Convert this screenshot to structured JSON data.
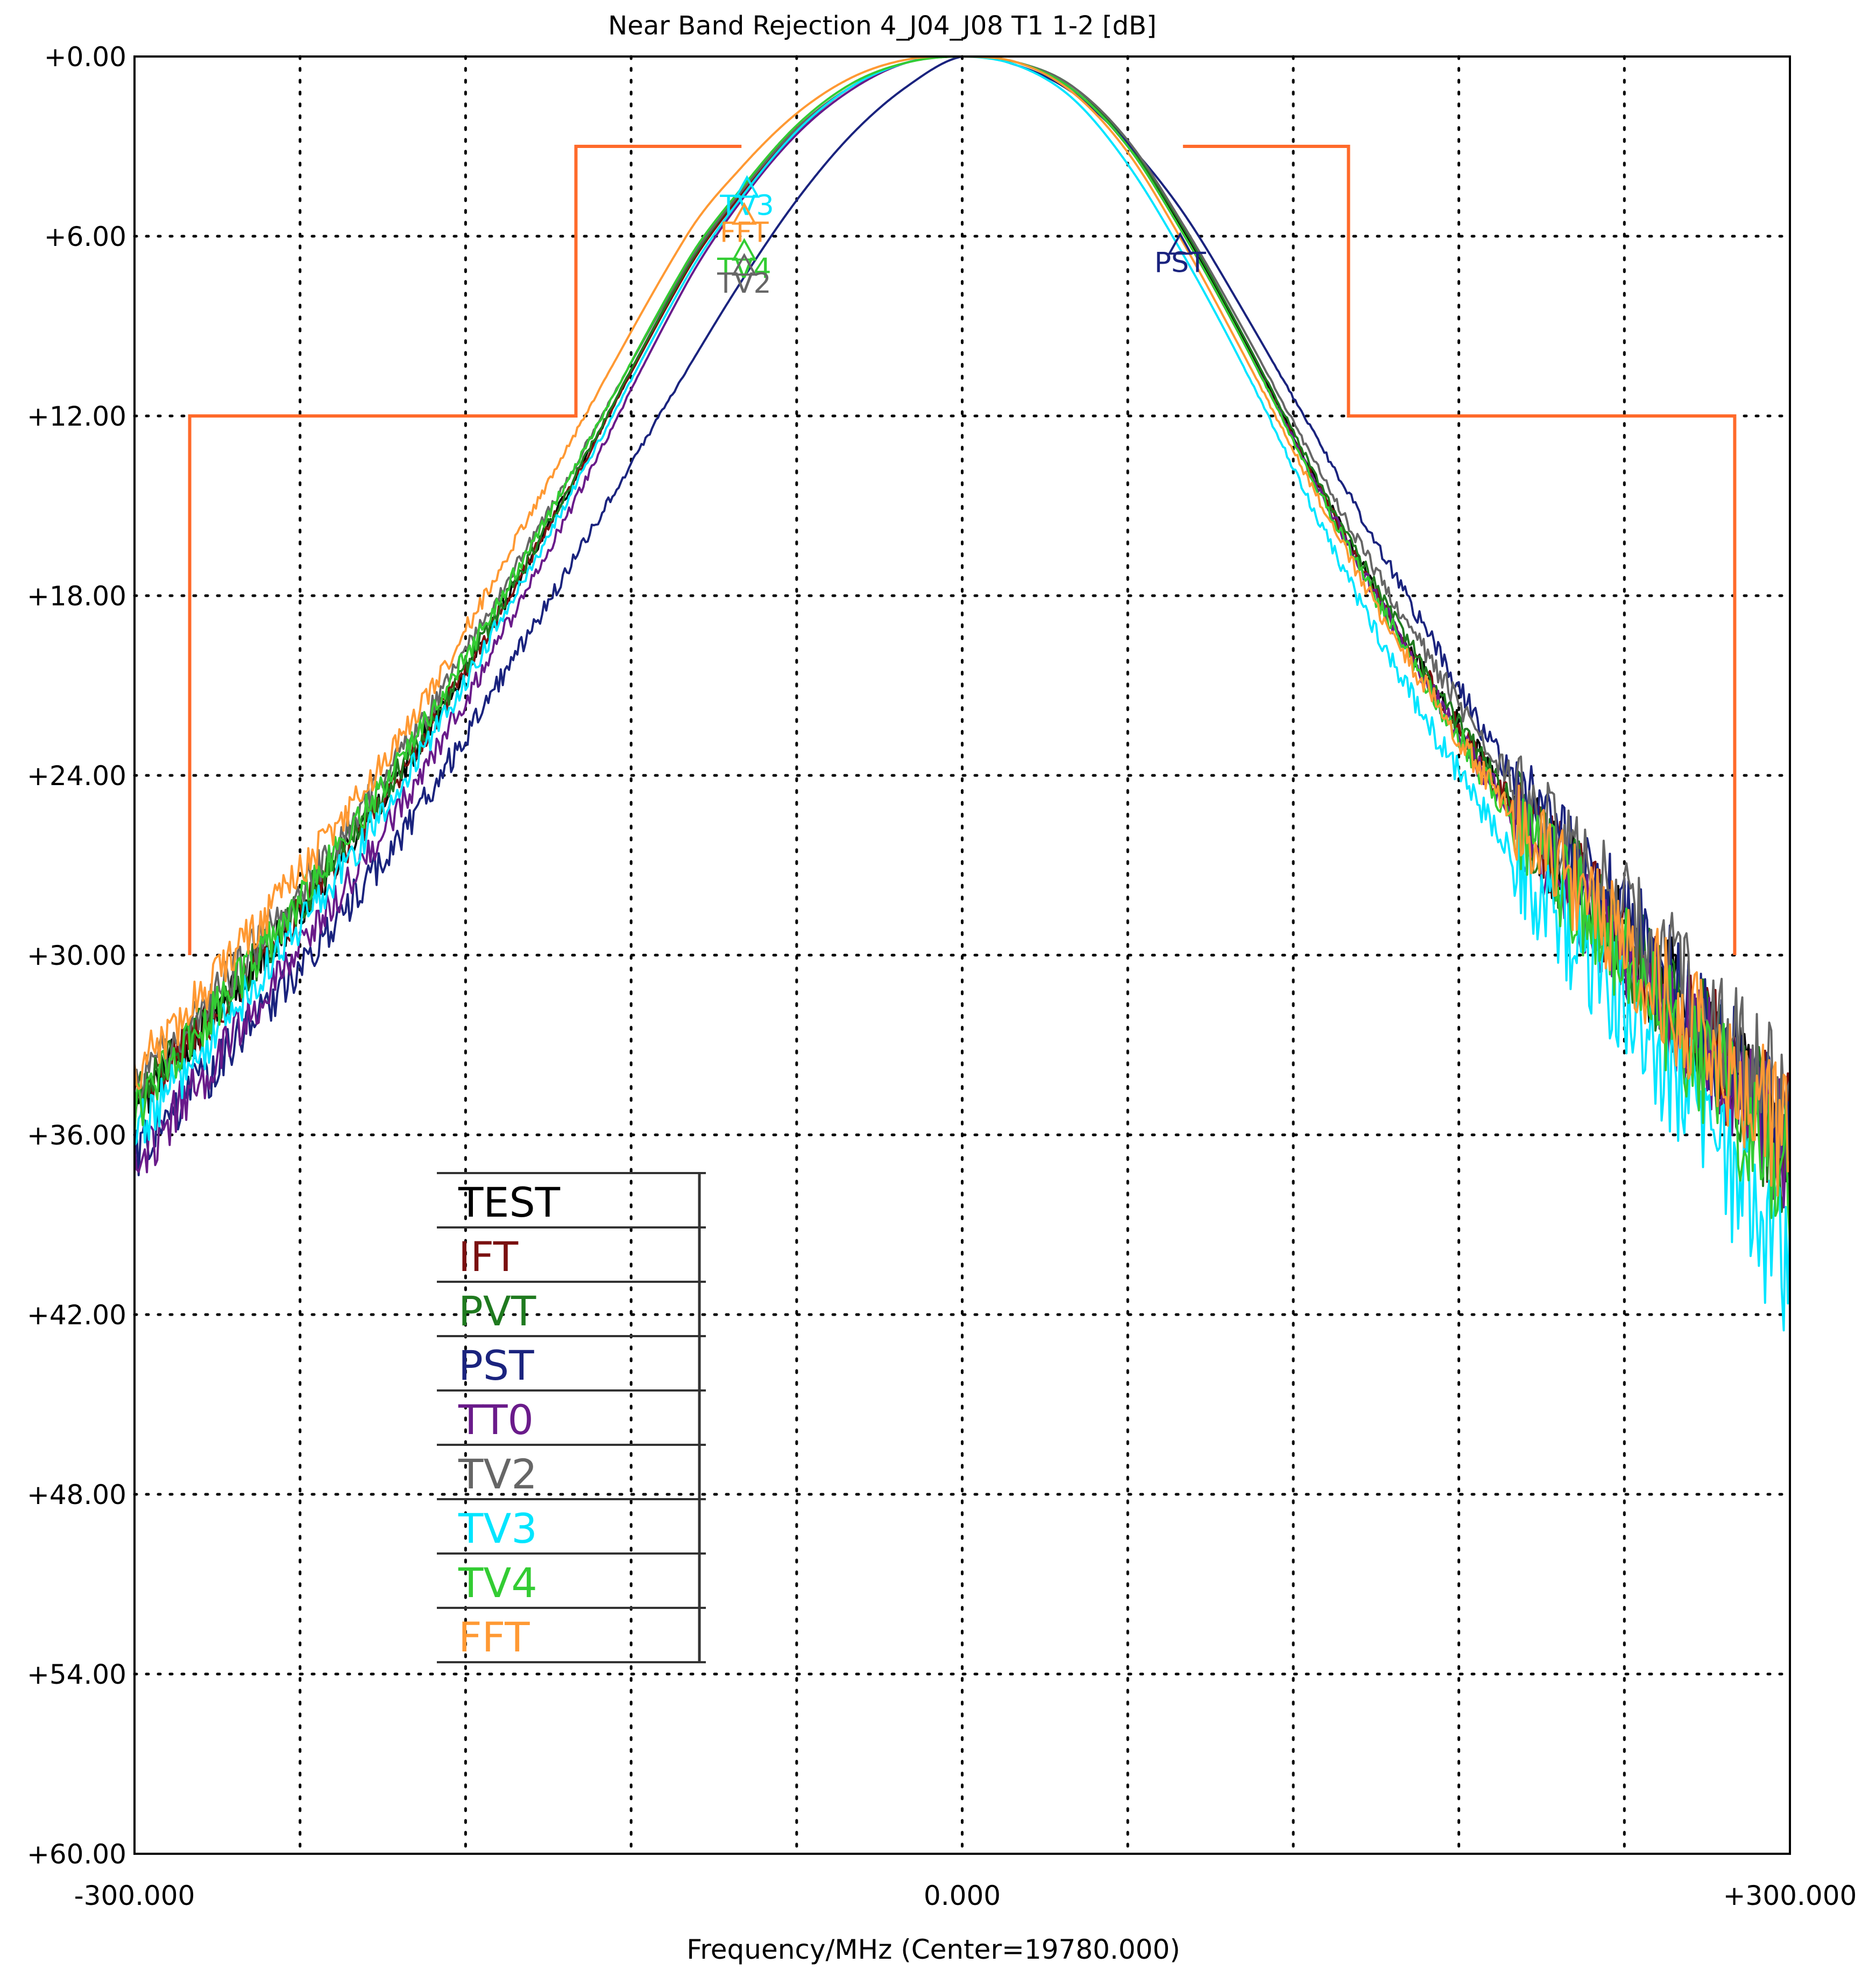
{
  "chart_data": {
    "type": "line",
    "title": "Near Band Rejection  4_J04_J08 T1 1-2 [dB]",
    "xlabel": "Frequency/MHz (Center=19780.000)",
    "ylabel": "",
    "xlim": [
      -300,
      300
    ],
    "ylim": [
      0,
      60
    ],
    "y_inverted": true,
    "x_ticks": [
      -300,
      -240,
      -180,
      -120,
      -60,
      0,
      60,
      120,
      180,
      240,
      300
    ],
    "x_tick_labels": [
      "-300.000",
      "",
      "",
      "",
      "",
      "0.000",
      "",
      "",
      "",
      "",
      "+300.000"
    ],
    "y_ticks": [
      0,
      6,
      12,
      18,
      24,
      30,
      36,
      42,
      48,
      54,
      60
    ],
    "y_tick_labels": [
      "+0.00",
      "+6.00",
      "+12.00",
      "+18.00",
      "+24.00",
      "+30.00",
      "+36.00",
      "+42.00",
      "+48.00",
      "+54.00",
      "+60.00"
    ],
    "grid": true,
    "legend_position": "lower-left",
    "legend": [
      {
        "name": "TEST",
        "color": "#000000"
      },
      {
        "name": "IFT",
        "color": "#7a1010"
      },
      {
        "name": "PVT",
        "color": "#1f7a1f"
      },
      {
        "name": "PST",
        "color": "#1a237e"
      },
      {
        "name": "TT0",
        "color": "#6a1b8a"
      },
      {
        "name": "TV2",
        "color": "#666666"
      },
      {
        "name": "TV3",
        "color": "#00e5ff"
      },
      {
        "name": "TV4",
        "color": "#33cc33"
      },
      {
        "name": "FFT",
        "color": "#ff9933"
      }
    ],
    "series": [
      {
        "name": "TEST",
        "color": "#000000",
        "x": [
          -300,
          -250,
          -200,
          -150,
          -100,
          -80,
          -60,
          -40,
          -20,
          0,
          20,
          40,
          60,
          80,
          100,
          150,
          200,
          250,
          300
        ],
        "y": [
          35.0,
          29.6,
          23.4,
          15.7,
          7.2,
          4.6,
          2.5,
          1.0,
          0.2,
          0.0,
          0.2,
          1.1,
          3.0,
          5.8,
          9.1,
          17.8,
          25.0,
          30.5,
          36.3
        ]
      },
      {
        "name": "IFT",
        "color": "#7a1010",
        "x": [
          -300,
          -250,
          -200,
          -150,
          -100,
          -80,
          -60,
          -40,
          -20,
          0,
          20,
          40,
          60,
          80,
          100,
          150,
          200,
          250,
          300
        ],
        "y": [
          35.0,
          29.6,
          23.4,
          15.7,
          7.2,
          4.6,
          2.5,
          1.0,
          0.2,
          0.0,
          0.2,
          1.1,
          3.0,
          5.9,
          9.2,
          17.9,
          25.1,
          30.6,
          36.4
        ]
      },
      {
        "name": "PVT",
        "color": "#1f7a1f",
        "x": [
          -300,
          -250,
          -200,
          -150,
          -100,
          -80,
          -60,
          -40,
          -20,
          0,
          20,
          40,
          60,
          80,
          100,
          150,
          200,
          250,
          300
        ],
        "y": [
          35.0,
          29.5,
          23.3,
          15.6,
          7.1,
          4.5,
          2.4,
          1.0,
          0.2,
          0.0,
          0.2,
          1.0,
          2.9,
          5.7,
          9.0,
          17.7,
          25.0,
          30.7,
          36.6
        ]
      },
      {
        "name": "PST",
        "color": "#1a237e",
        "x": [
          -300,
          -250,
          -200,
          -150,
          -100,
          -80,
          -60,
          -40,
          -20,
          0,
          20,
          40,
          60,
          80,
          100,
          150,
          200,
          250,
          300
        ],
        "y": [
          36.7,
          31.5,
          25.5,
          18.2,
          10.5,
          7.5,
          4.8,
          2.6,
          1.0,
          0.0,
          0.3,
          1.2,
          2.9,
          5.2,
          8.2,
          16.2,
          24.1,
          30.0,
          36.2
        ]
      },
      {
        "name": "TT0",
        "color": "#6a1b8a",
        "x": [
          -300,
          -250,
          -200,
          -150,
          -100,
          -80,
          -60,
          -40,
          -20,
          0,
          20,
          40,
          60,
          80,
          100,
          150,
          200,
          250,
          300
        ],
        "y": [
          37.0,
          31.0,
          24.5,
          16.5,
          7.6,
          4.8,
          2.6,
          1.1,
          0.2,
          0.0,
          0.2,
          1.1,
          3.0,
          5.9,
          9.2,
          18.0,
          25.4,
          31.0,
          36.6
        ]
      },
      {
        "name": "TV2",
        "color": "#666666",
        "x": [
          -300,
          -250,
          -200,
          -150,
          -100,
          -80,
          -60,
          -40,
          -20,
          0,
          20,
          40,
          60,
          80,
          100,
          150,
          200,
          250,
          300
        ],
        "y": [
          34.5,
          29.0,
          22.8,
          15.2,
          7.0,
          4.5,
          2.4,
          1.0,
          0.2,
          0.0,
          0.2,
          1.0,
          2.8,
          5.6,
          8.8,
          17.2,
          24.2,
          29.6,
          35.0
        ]
      },
      {
        "name": "TV3",
        "color": "#00e5ff",
        "x": [
          -300,
          -250,
          -200,
          -150,
          -100,
          -80,
          -60,
          -40,
          -20,
          0,
          20,
          40,
          60,
          80,
          100,
          150,
          200,
          250,
          300
        ],
        "y": [
          36.0,
          30.2,
          23.8,
          16.0,
          7.4,
          4.7,
          2.5,
          1.0,
          0.2,
          0.0,
          0.3,
          1.4,
          3.6,
          6.6,
          10.0,
          19.2,
          26.8,
          33.0,
          40.5
        ]
      },
      {
        "name": "TV4",
        "color": "#33cc33",
        "x": [
          -300,
          -250,
          -200,
          -150,
          -100,
          -80,
          -60,
          -40,
          -20,
          0,
          20,
          40,
          60,
          80,
          100,
          150,
          200,
          250,
          300
        ],
        "y": [
          35.2,
          29.4,
          23.0,
          15.3,
          6.9,
          4.4,
          2.3,
          0.9,
          0.2,
          0.0,
          0.2,
          1.1,
          3.0,
          5.9,
          9.2,
          18.1,
          25.5,
          31.3,
          37.5
        ]
      },
      {
        "name": "FFT",
        "color": "#ff9933",
        "x": [
          -300,
          -250,
          -200,
          -150,
          -100,
          -80,
          -60,
          -40,
          -20,
          0,
          20,
          40,
          60,
          80,
          100,
          150,
          200,
          250,
          300
        ],
        "y": [
          34.0,
          28.4,
          22.2,
          14.2,
          6.0,
          3.7,
          1.9,
          0.7,
          0.1,
          0.0,
          0.2,
          1.2,
          3.2,
          6.2,
          9.6,
          18.3,
          25.4,
          30.8,
          36.3
        ]
      }
    ],
    "limit_mask": {
      "color": "#ff6a2a",
      "left": {
        "x": [
          -280,
          -280,
          -140,
          -140,
          -80
        ],
        "y": [
          30,
          12,
          12,
          3,
          3
        ]
      },
      "right": {
        "x": [
          80,
          140,
          140,
          280,
          280
        ],
        "y": [
          3,
          3,
          12,
          12,
          30
        ]
      }
    },
    "markers": [
      {
        "label": "TV3",
        "color": "#00e5ff",
        "x": -78,
        "y": 4.5
      },
      {
        "label": "FFT",
        "color": "#ff9933",
        "x": -79,
        "y": 5.4
      },
      {
        "label": "TV4",
        "color": "#33cc33",
        "x": -79,
        "y": 6.6
      },
      {
        "label": "TV2",
        "color": "#666666",
        "x": -79,
        "y": 7.1
      },
      {
        "label": "PST",
        "color": "#1a237e",
        "x": 79,
        "y": 6.4
      }
    ]
  }
}
